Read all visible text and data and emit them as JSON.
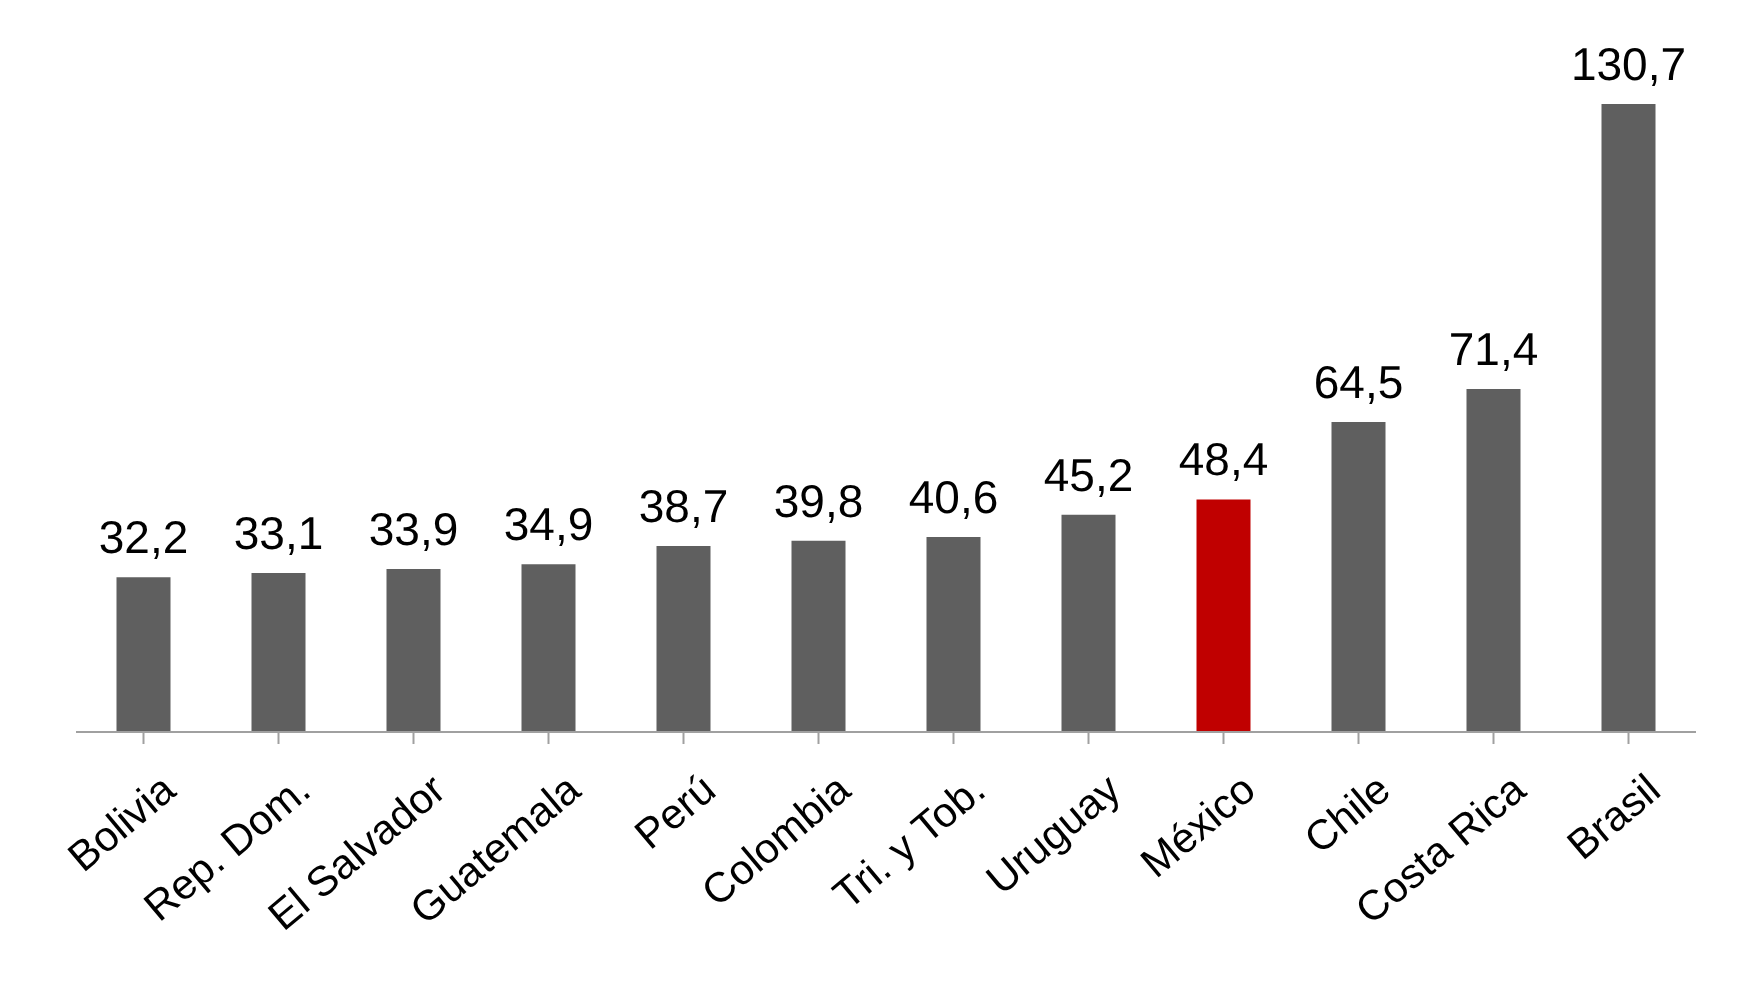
{
  "chart_data": {
    "type": "bar",
    "categories": [
      "Bolivia",
      "Rep. Dom.",
      "El Salvador",
      "Guatemala",
      "Perú",
      "Colombia",
      "Tri. y Tob.",
      "Uruguay",
      "México",
      "Chile",
      "Costa Rica",
      "Brasil"
    ],
    "values": [
      32.2,
      33.1,
      33.9,
      34.9,
      38.7,
      39.8,
      40.6,
      45.2,
      48.4,
      64.5,
      71.4,
      130.7
    ],
    "colors": [
      "#5f5f5f",
      "#5f5f5f",
      "#5f5f5f",
      "#5f5f5f",
      "#5f5f5f",
      "#5f5f5f",
      "#5f5f5f",
      "#5f5f5f",
      "#c00000",
      "#5f5f5f",
      "#5f5f5f",
      "#5f5f5f"
    ],
    "value_labels": [
      "32,2",
      "33,1",
      "33,9",
      "34,9",
      "38,7",
      "39,8",
      "40,6",
      "45,2",
      "48,4",
      "64,5",
      "71,4",
      "130,7"
    ],
    "tick_labels": "x"
  }
}
